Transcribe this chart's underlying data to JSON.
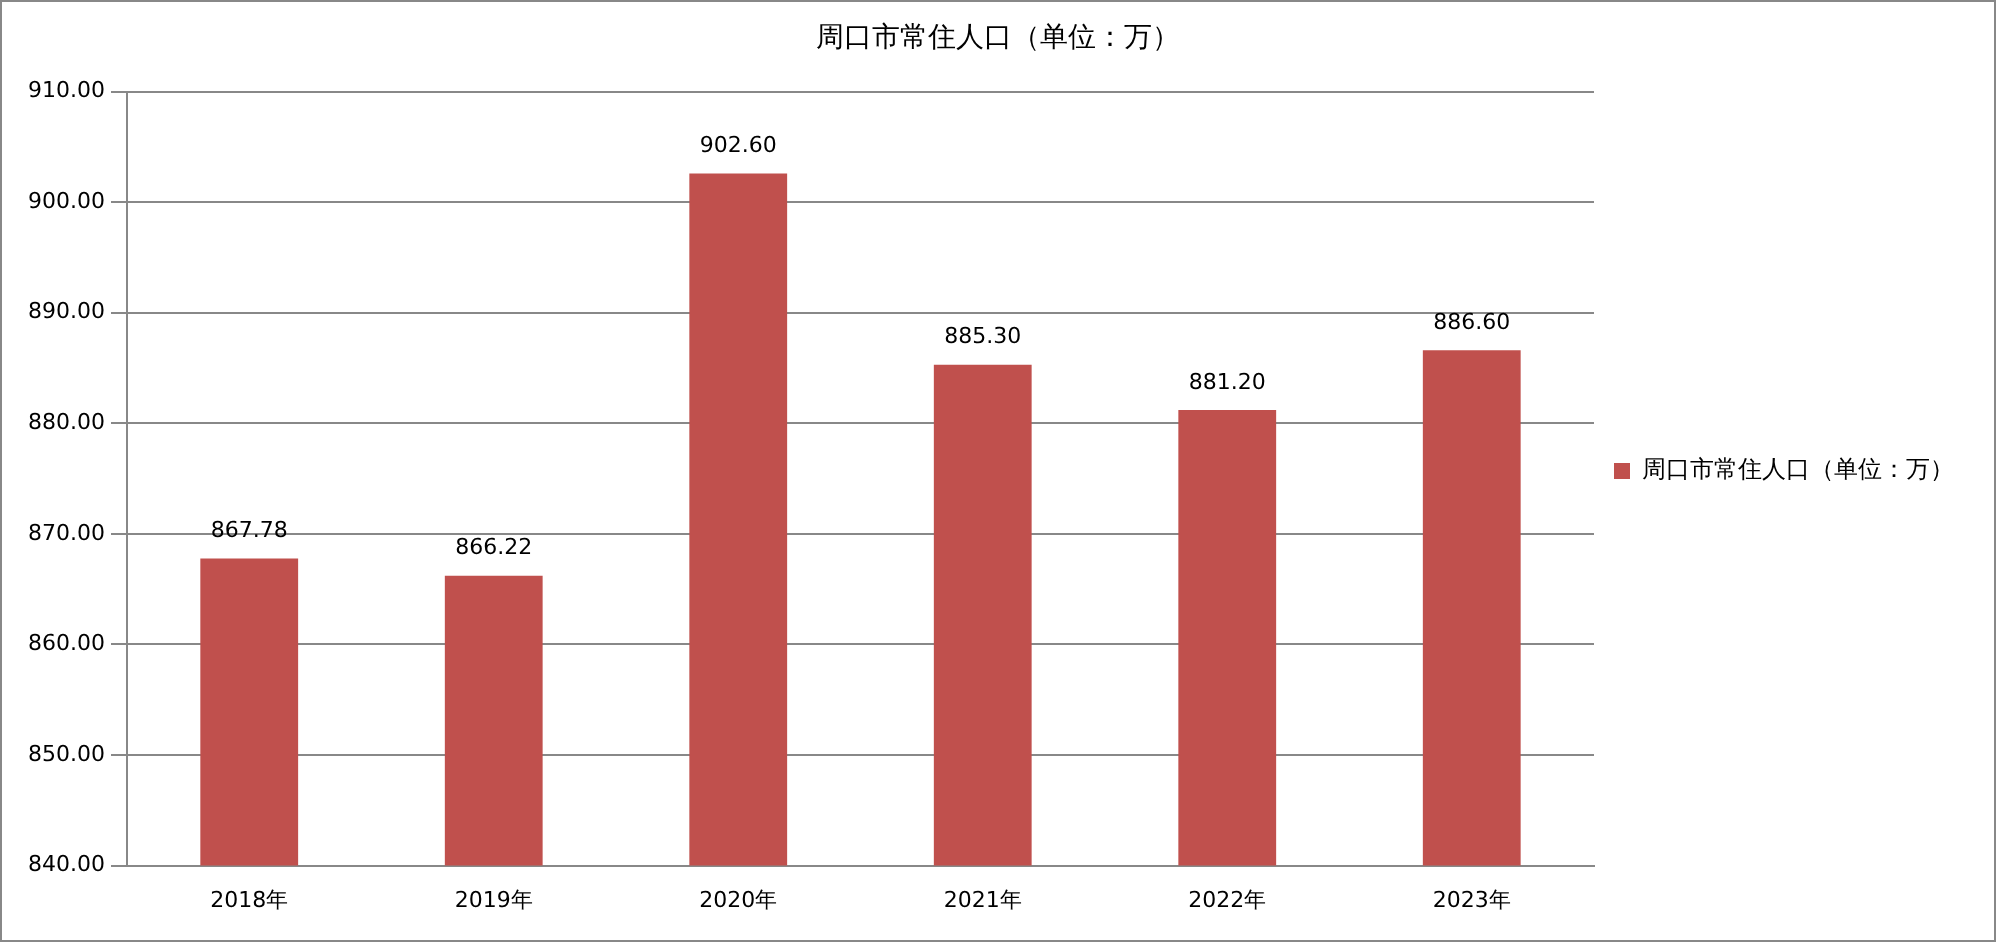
{
  "chart_data": {
    "type": "bar",
    "title": "周口市常住人口（单位：万）",
    "categories": [
      "2018年",
      "2019年",
      "2020年",
      "2021年",
      "2022年",
      "2023年"
    ],
    "series": [
      {
        "name": "周口市常住人口（单位：万）",
        "color": "#c0504d",
        "values": [
          867.78,
          866.22,
          902.6,
          885.3,
          881.2,
          886.6
        ],
        "value_labels": [
          "867.78",
          "866.22",
          "902.60",
          "885.30",
          "881.20",
          "886.60"
        ]
      }
    ],
    "ylim": [
      840,
      910
    ],
    "yticks": [
      {
        "value": 840,
        "label": "840.00"
      },
      {
        "value": 850,
        "label": "850.00"
      },
      {
        "value": 860,
        "label": "860.00"
      },
      {
        "value": 870,
        "label": "870.00"
      },
      {
        "value": 880,
        "label": "880.00"
      },
      {
        "value": 890,
        "label": "890.00"
      },
      {
        "value": 900,
        "label": "900.00"
      },
      {
        "value": 910,
        "label": "910.00"
      }
    ],
    "grid": "y",
    "legend": "right"
  }
}
